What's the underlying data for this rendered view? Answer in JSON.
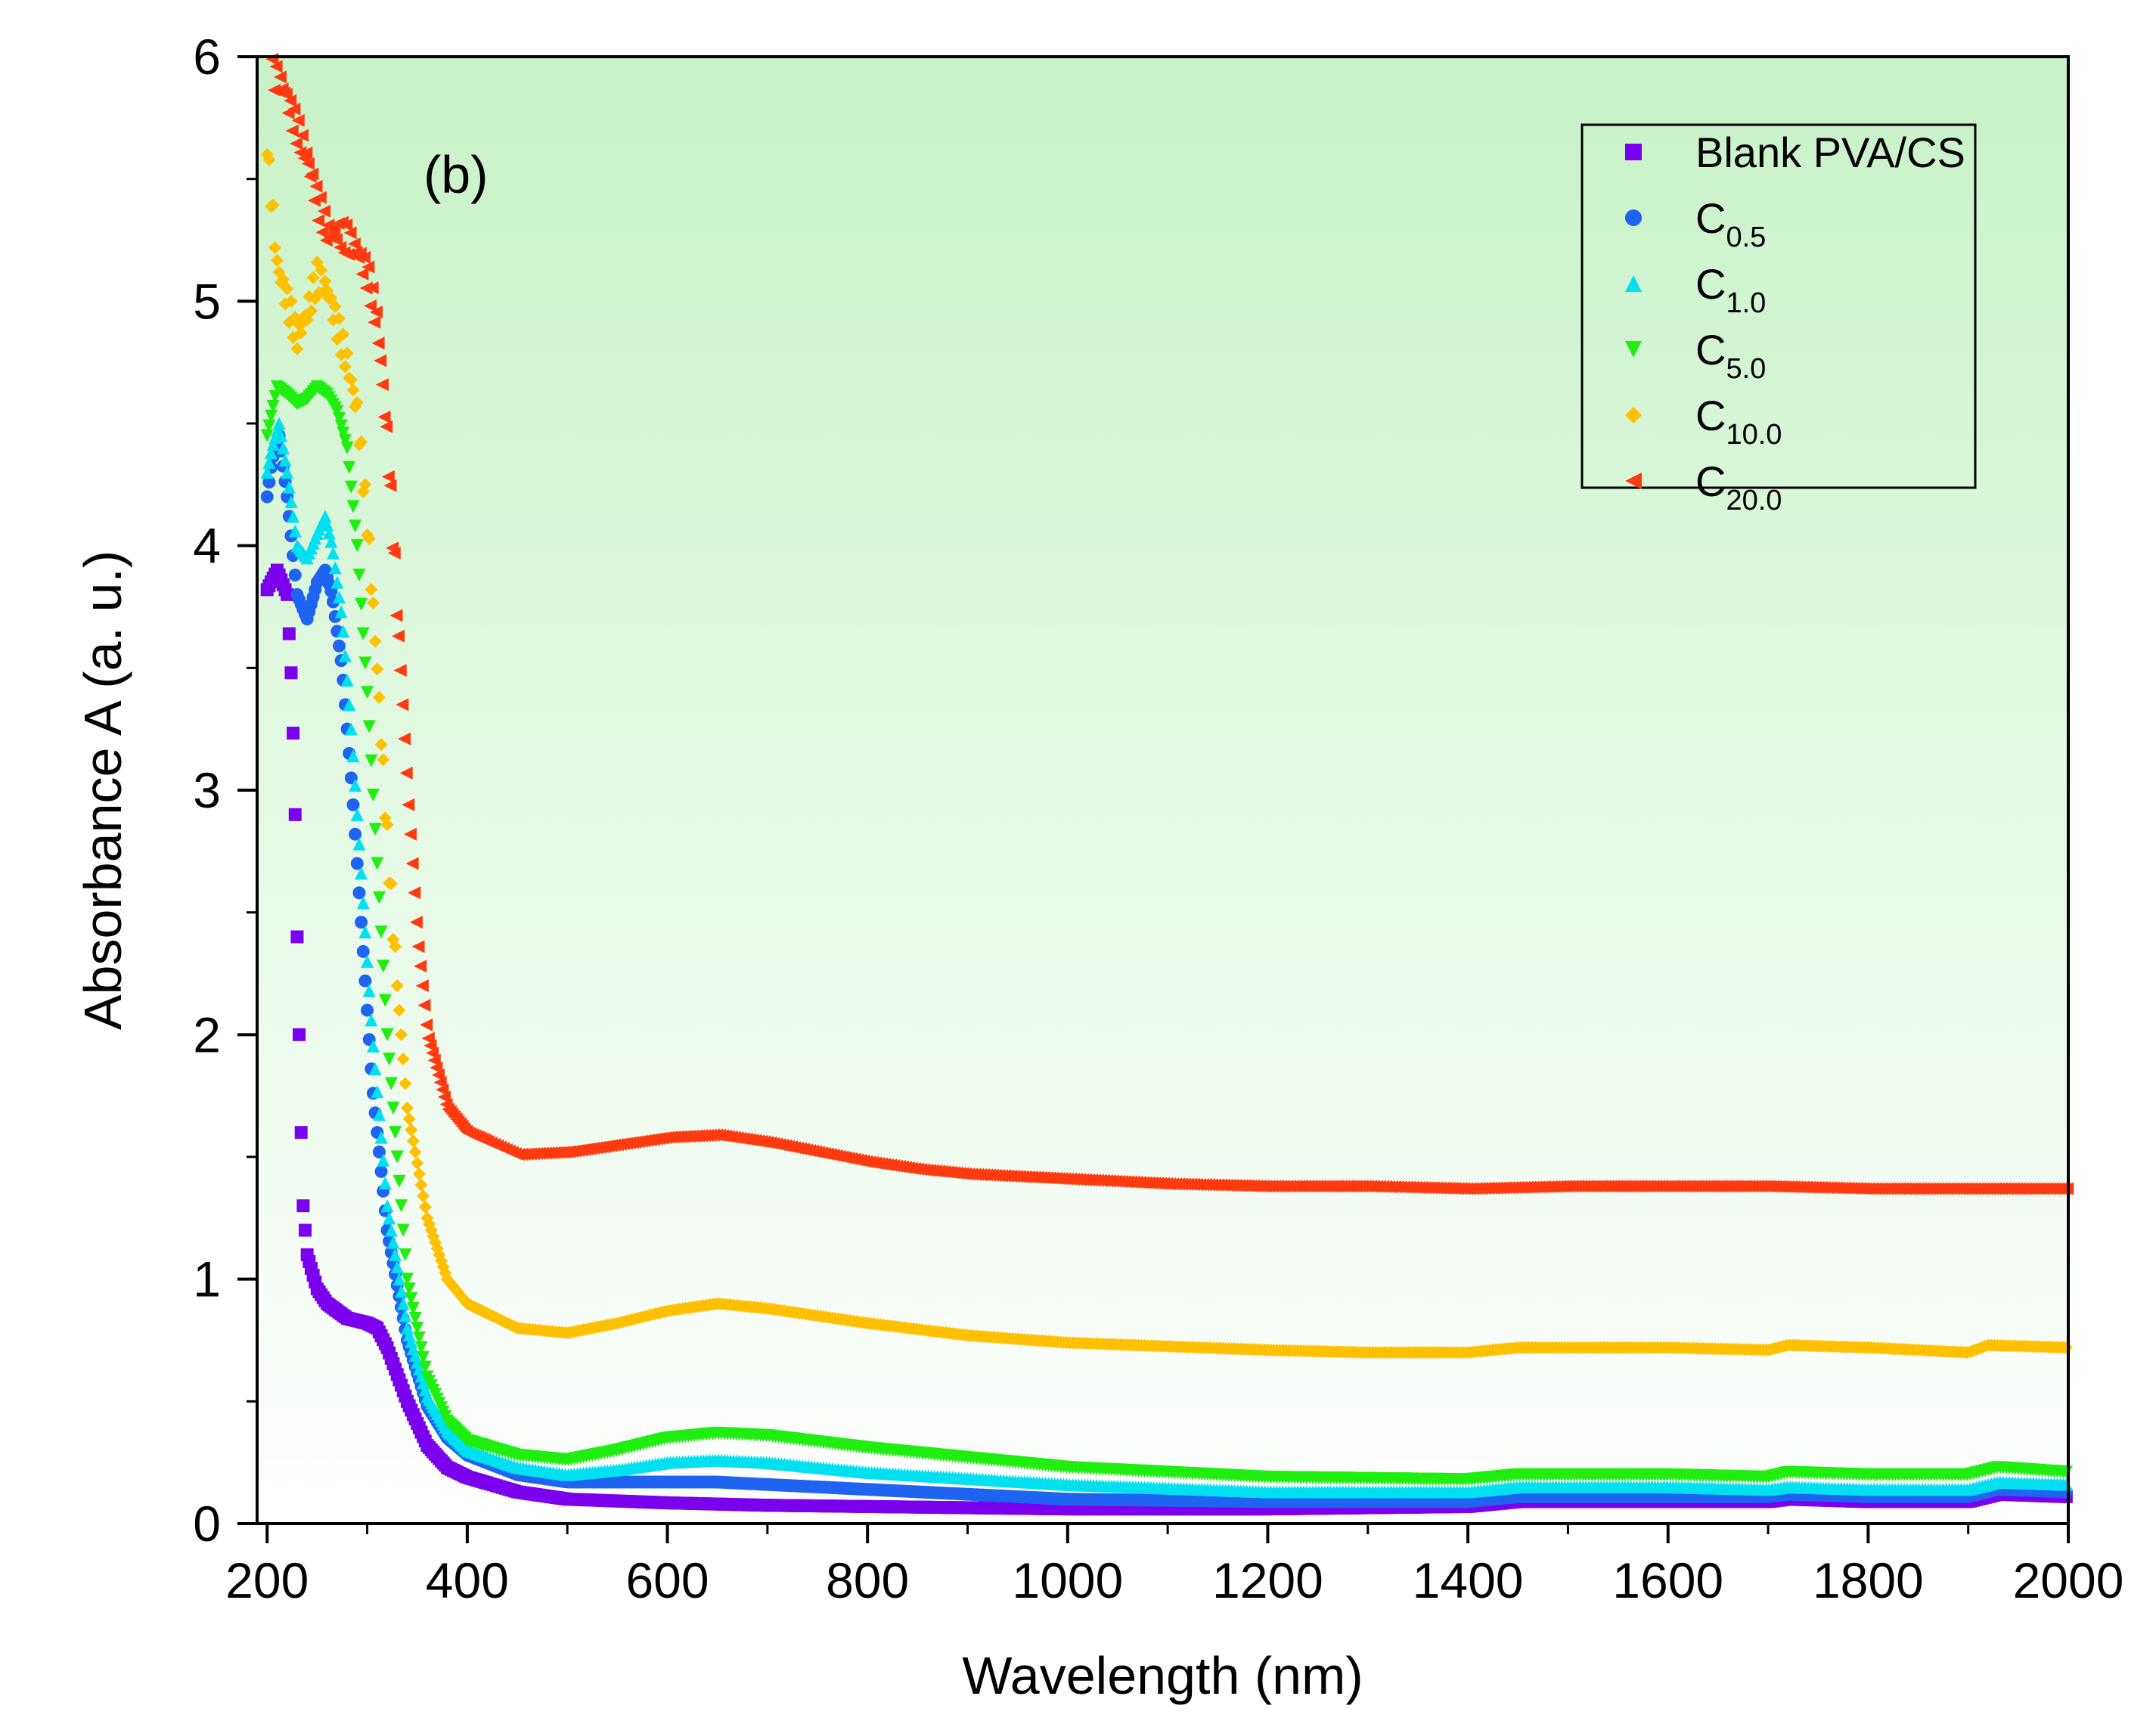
{
  "chart_data": {
    "type": "scatter",
    "panel_label": "(b)",
    "xlabel": "Wavelength (nm)",
    "ylabel": "Absorbance A (a. u.)",
    "xlim": [
      190,
      2000
    ],
    "ylim": [
      0,
      6
    ],
    "x_ticks": [
      "200",
      "400",
      "600",
      "800",
      "1000",
      "1200",
      "1400",
      "1600",
      "1800",
      "2000"
    ],
    "y_ticks": [
      "0",
      "1",
      "2",
      "3",
      "4",
      "5",
      "6"
    ],
    "background": {
      "top_color": "#c8f2c8",
      "bottom_color": "#ffffff"
    },
    "legend": {
      "position": "top-right"
    },
    "series": [
      {
        "name": "Blank PVA/CS",
        "base": "Blank PVA/CS",
        "sub": "",
        "color": "#7a00ee",
        "marker": "square",
        "points": [
          [
            200,
            3.82
          ],
          [
            210,
            3.9
          ],
          [
            220,
            3.8
          ],
          [
            225,
            3.4
          ],
          [
            228,
            2.9
          ],
          [
            230,
            2.4
          ],
          [
            232,
            2.0
          ],
          [
            234,
            1.6
          ],
          [
            236,
            1.3
          ],
          [
            240,
            1.1
          ],
          [
            250,
            0.96
          ],
          [
            260,
            0.9
          ],
          [
            280,
            0.84
          ],
          [
            300,
            0.82
          ],
          [
            310,
            0.8
          ],
          [
            320,
            0.72
          ],
          [
            340,
            0.5
          ],
          [
            360,
            0.32
          ],
          [
            380,
            0.23
          ],
          [
            400,
            0.19
          ],
          [
            450,
            0.13
          ],
          [
            500,
            0.1
          ],
          [
            600,
            0.085
          ],
          [
            700,
            0.075
          ],
          [
            800,
            0.07
          ],
          [
            1000,
            0.06
          ],
          [
            1200,
            0.06
          ],
          [
            1400,
            0.07
          ],
          [
            1450,
            0.09
          ],
          [
            1600,
            0.09
          ],
          [
            1700,
            0.09
          ],
          [
            1720,
            0.1
          ],
          [
            1800,
            0.09
          ],
          [
            1900,
            0.09
          ],
          [
            1930,
            0.12
          ],
          [
            2000,
            0.11
          ]
        ]
      },
      {
        "name": "C0.5",
        "base": "C",
        "sub": "0.5",
        "color": "#1e64f0",
        "marker": "circle",
        "points": [
          [
            200,
            4.2
          ],
          [
            205,
            4.35
          ],
          [
            212,
            4.45
          ],
          [
            220,
            4.2
          ],
          [
            230,
            3.8
          ],
          [
            240,
            3.7
          ],
          [
            250,
            3.85
          ],
          [
            258,
            3.9
          ],
          [
            265,
            3.8
          ],
          [
            275,
            3.5
          ],
          [
            285,
            3.0
          ],
          [
            295,
            2.4
          ],
          [
            305,
            1.8
          ],
          [
            320,
            1.2
          ],
          [
            340,
            0.75
          ],
          [
            360,
            0.48
          ],
          [
            380,
            0.35
          ],
          [
            400,
            0.28
          ],
          [
            450,
            0.2
          ],
          [
            500,
            0.17
          ],
          [
            600,
            0.17
          ],
          [
            650,
            0.17
          ],
          [
            700,
            0.16
          ],
          [
            800,
            0.14
          ],
          [
            1000,
            0.1
          ],
          [
            1200,
            0.09
          ],
          [
            1400,
            0.09
          ],
          [
            1450,
            0.11
          ],
          [
            1600,
            0.11
          ],
          [
            1700,
            0.11
          ],
          [
            1720,
            0.12
          ],
          [
            1800,
            0.11
          ],
          [
            1900,
            0.11
          ],
          [
            1930,
            0.14
          ],
          [
            2000,
            0.13
          ]
        ]
      },
      {
        "name": "C1.0",
        "base": "C",
        "sub": "1.0",
        "color": "#00e0f0",
        "marker": "triangle-up",
        "points": [
          [
            200,
            4.3
          ],
          [
            205,
            4.4
          ],
          [
            212,
            4.5
          ],
          [
            220,
            4.3
          ],
          [
            230,
            4.0
          ],
          [
            240,
            3.95
          ],
          [
            250,
            4.05
          ],
          [
            258,
            4.12
          ],
          [
            265,
            4.0
          ],
          [
            275,
            3.7
          ],
          [
            285,
            3.2
          ],
          [
            295,
            2.6
          ],
          [
            305,
            2.0
          ],
          [
            320,
            1.3
          ],
          [
            340,
            0.8
          ],
          [
            360,
            0.52
          ],
          [
            380,
            0.38
          ],
          [
            400,
            0.3
          ],
          [
            450,
            0.23
          ],
          [
            500,
            0.2
          ],
          [
            550,
            0.22
          ],
          [
            600,
            0.25
          ],
          [
            650,
            0.26
          ],
          [
            700,
            0.25
          ],
          [
            800,
            0.21
          ],
          [
            1000,
            0.16
          ],
          [
            1200,
            0.13
          ],
          [
            1400,
            0.13
          ],
          [
            1450,
            0.15
          ],
          [
            1600,
            0.15
          ],
          [
            1700,
            0.14
          ],
          [
            1720,
            0.15
          ],
          [
            1800,
            0.14
          ],
          [
            1900,
            0.14
          ],
          [
            1930,
            0.17
          ],
          [
            2000,
            0.16
          ]
        ]
      },
      {
        "name": "C5.0",
        "base": "C",
        "sub": "5.0",
        "color": "#20ee10",
        "marker": "triangle-down",
        "points": [
          [
            200,
            4.45
          ],
          [
            210,
            4.65
          ],
          [
            220,
            4.62
          ],
          [
            230,
            4.58
          ],
          [
            240,
            4.6
          ],
          [
            250,
            4.65
          ],
          [
            260,
            4.62
          ],
          [
            270,
            4.55
          ],
          [
            280,
            4.4
          ],
          [
            290,
            4.0
          ],
          [
            300,
            3.4
          ],
          [
            310,
            2.7
          ],
          [
            320,
            2.0
          ],
          [
            340,
            1.0
          ],
          [
            360,
            0.6
          ],
          [
            380,
            0.42
          ],
          [
            400,
            0.34
          ],
          [
            450,
            0.28
          ],
          [
            500,
            0.26
          ],
          [
            550,
            0.3
          ],
          [
            600,
            0.35
          ],
          [
            650,
            0.37
          ],
          [
            700,
            0.36
          ],
          [
            800,
            0.31
          ],
          [
            1000,
            0.23
          ],
          [
            1200,
            0.19
          ],
          [
            1400,
            0.18
          ],
          [
            1450,
            0.2
          ],
          [
            1600,
            0.2
          ],
          [
            1700,
            0.19
          ],
          [
            1720,
            0.21
          ],
          [
            1800,
            0.2
          ],
          [
            1900,
            0.2
          ],
          [
            1930,
            0.23
          ],
          [
            2000,
            0.21
          ]
        ]
      },
      {
        "name": "C10.0",
        "base": "C",
        "sub": "10.0",
        "color": "#ffc000",
        "marker": "diamond",
        "points": [
          [
            200,
            5.6
          ],
          [
            205,
            5.4
          ],
          [
            210,
            5.15
          ],
          [
            220,
            5.0
          ],
          [
            230,
            4.85
          ],
          [
            240,
            4.95
          ],
          [
            250,
            5.1
          ],
          [
            260,
            5.05
          ],
          [
            270,
            4.9
          ],
          [
            280,
            4.75
          ],
          [
            290,
            4.55
          ],
          [
            300,
            4.1
          ],
          [
            310,
            3.5
          ],
          [
            320,
            2.8
          ],
          [
            330,
            2.2
          ],
          [
            340,
            1.7
          ],
          [
            360,
            1.25
          ],
          [
            380,
            1.0
          ],
          [
            400,
            0.9
          ],
          [
            450,
            0.8
          ],
          [
            500,
            0.78
          ],
          [
            550,
            0.82
          ],
          [
            600,
            0.87
          ],
          [
            650,
            0.9
          ],
          [
            700,
            0.88
          ],
          [
            800,
            0.82
          ],
          [
            900,
            0.77
          ],
          [
            1000,
            0.74
          ],
          [
            1200,
            0.71
          ],
          [
            1300,
            0.7
          ],
          [
            1400,
            0.7
          ],
          [
            1450,
            0.72
          ],
          [
            1600,
            0.72
          ],
          [
            1700,
            0.71
          ],
          [
            1720,
            0.73
          ],
          [
            1800,
            0.72
          ],
          [
            1900,
            0.7
          ],
          [
            1920,
            0.73
          ],
          [
            2000,
            0.72
          ]
        ]
      },
      {
        "name": "C20.0",
        "base": "C",
        "sub": "20.0",
        "color": "#ff3a10",
        "marker": "triangle-left",
        "points": [
          [
            205,
            5.93
          ],
          [
            215,
            5.88
          ],
          [
            225,
            5.75
          ],
          [
            240,
            5.58
          ],
          [
            250,
            5.4
          ],
          [
            260,
            5.28
          ],
          [
            270,
            5.28
          ],
          [
            280,
            5.25
          ],
          [
            290,
            5.2
          ],
          [
            300,
            5.1
          ],
          [
            310,
            4.9
          ],
          [
            320,
            4.4
          ],
          [
            330,
            3.7
          ],
          [
            340,
            3.0
          ],
          [
            350,
            2.4
          ],
          [
            360,
            2.0
          ],
          [
            380,
            1.7
          ],
          [
            400,
            1.6
          ],
          [
            450,
            1.51
          ],
          [
            500,
            1.52
          ],
          [
            550,
            1.55
          ],
          [
            600,
            1.58
          ],
          [
            650,
            1.59
          ],
          [
            700,
            1.56
          ],
          [
            800,
            1.48
          ],
          [
            850,
            1.45
          ],
          [
            900,
            1.43
          ],
          [
            1000,
            1.41
          ],
          [
            1100,
            1.39
          ],
          [
            1200,
            1.38
          ],
          [
            1300,
            1.38
          ],
          [
            1400,
            1.37
          ],
          [
            1500,
            1.38
          ],
          [
            1600,
            1.38
          ],
          [
            1700,
            1.38
          ],
          [
            1800,
            1.37
          ],
          [
            1900,
            1.37
          ],
          [
            2000,
            1.37
          ]
        ]
      }
    ]
  }
}
